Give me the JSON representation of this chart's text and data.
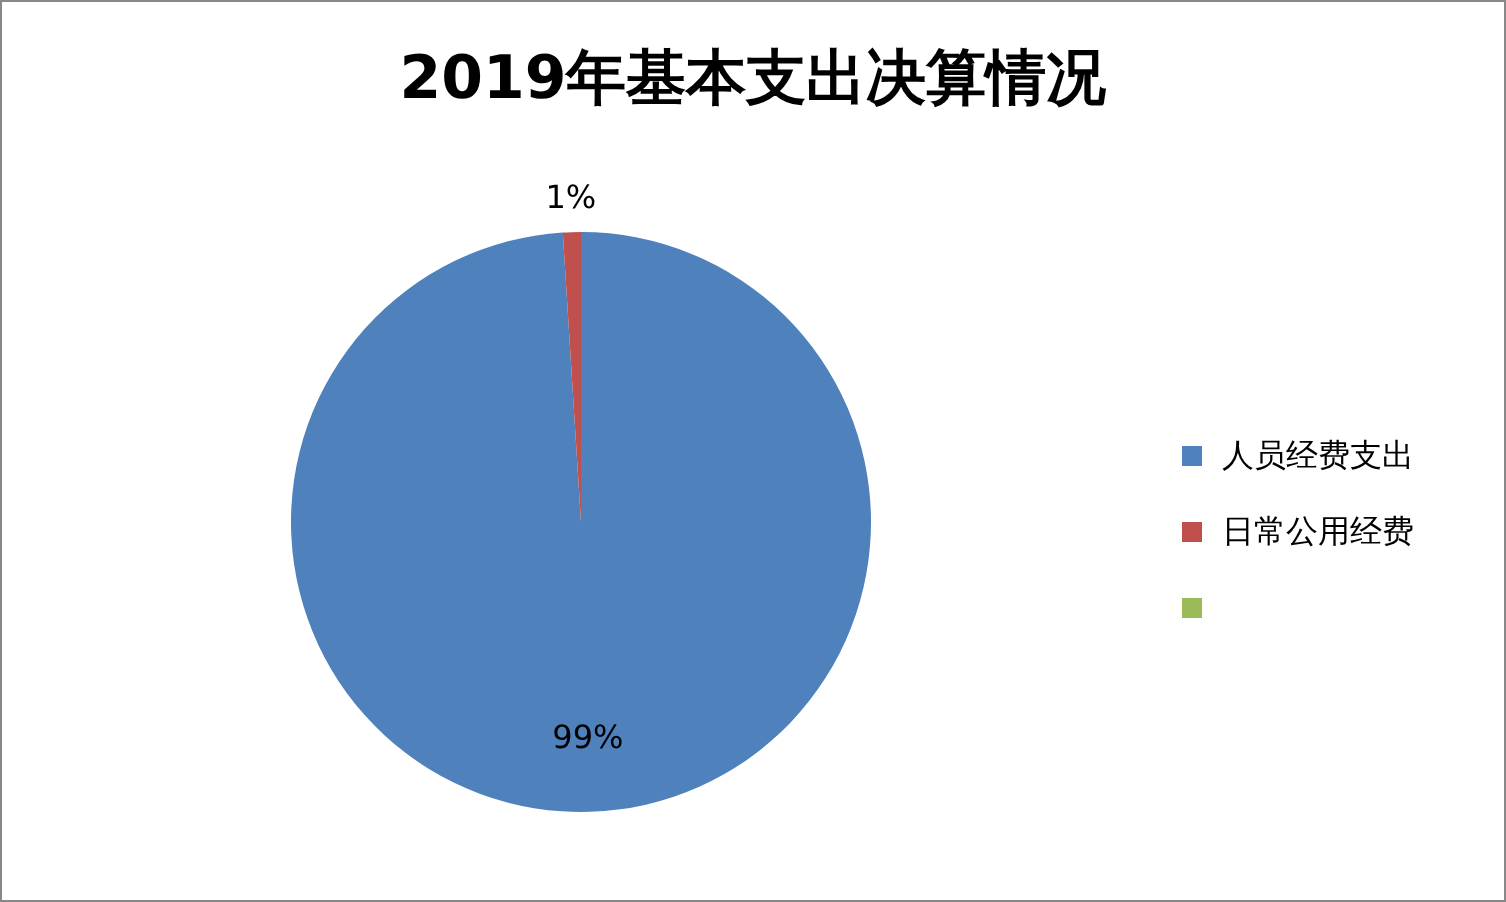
{
  "chart_data": {
    "type": "pie",
    "title": "2019年基本支出决算情况",
    "categories": [
      "人员经费支出",
      "日常公用经费",
      null
    ],
    "values": [
      99,
      1,
      0
    ],
    "colors": [
      "#4f81bd",
      "#c0504d",
      "#9bbb59"
    ],
    "value_labels": [
      "99%",
      "1%",
      null
    ],
    "legend": "right"
  }
}
